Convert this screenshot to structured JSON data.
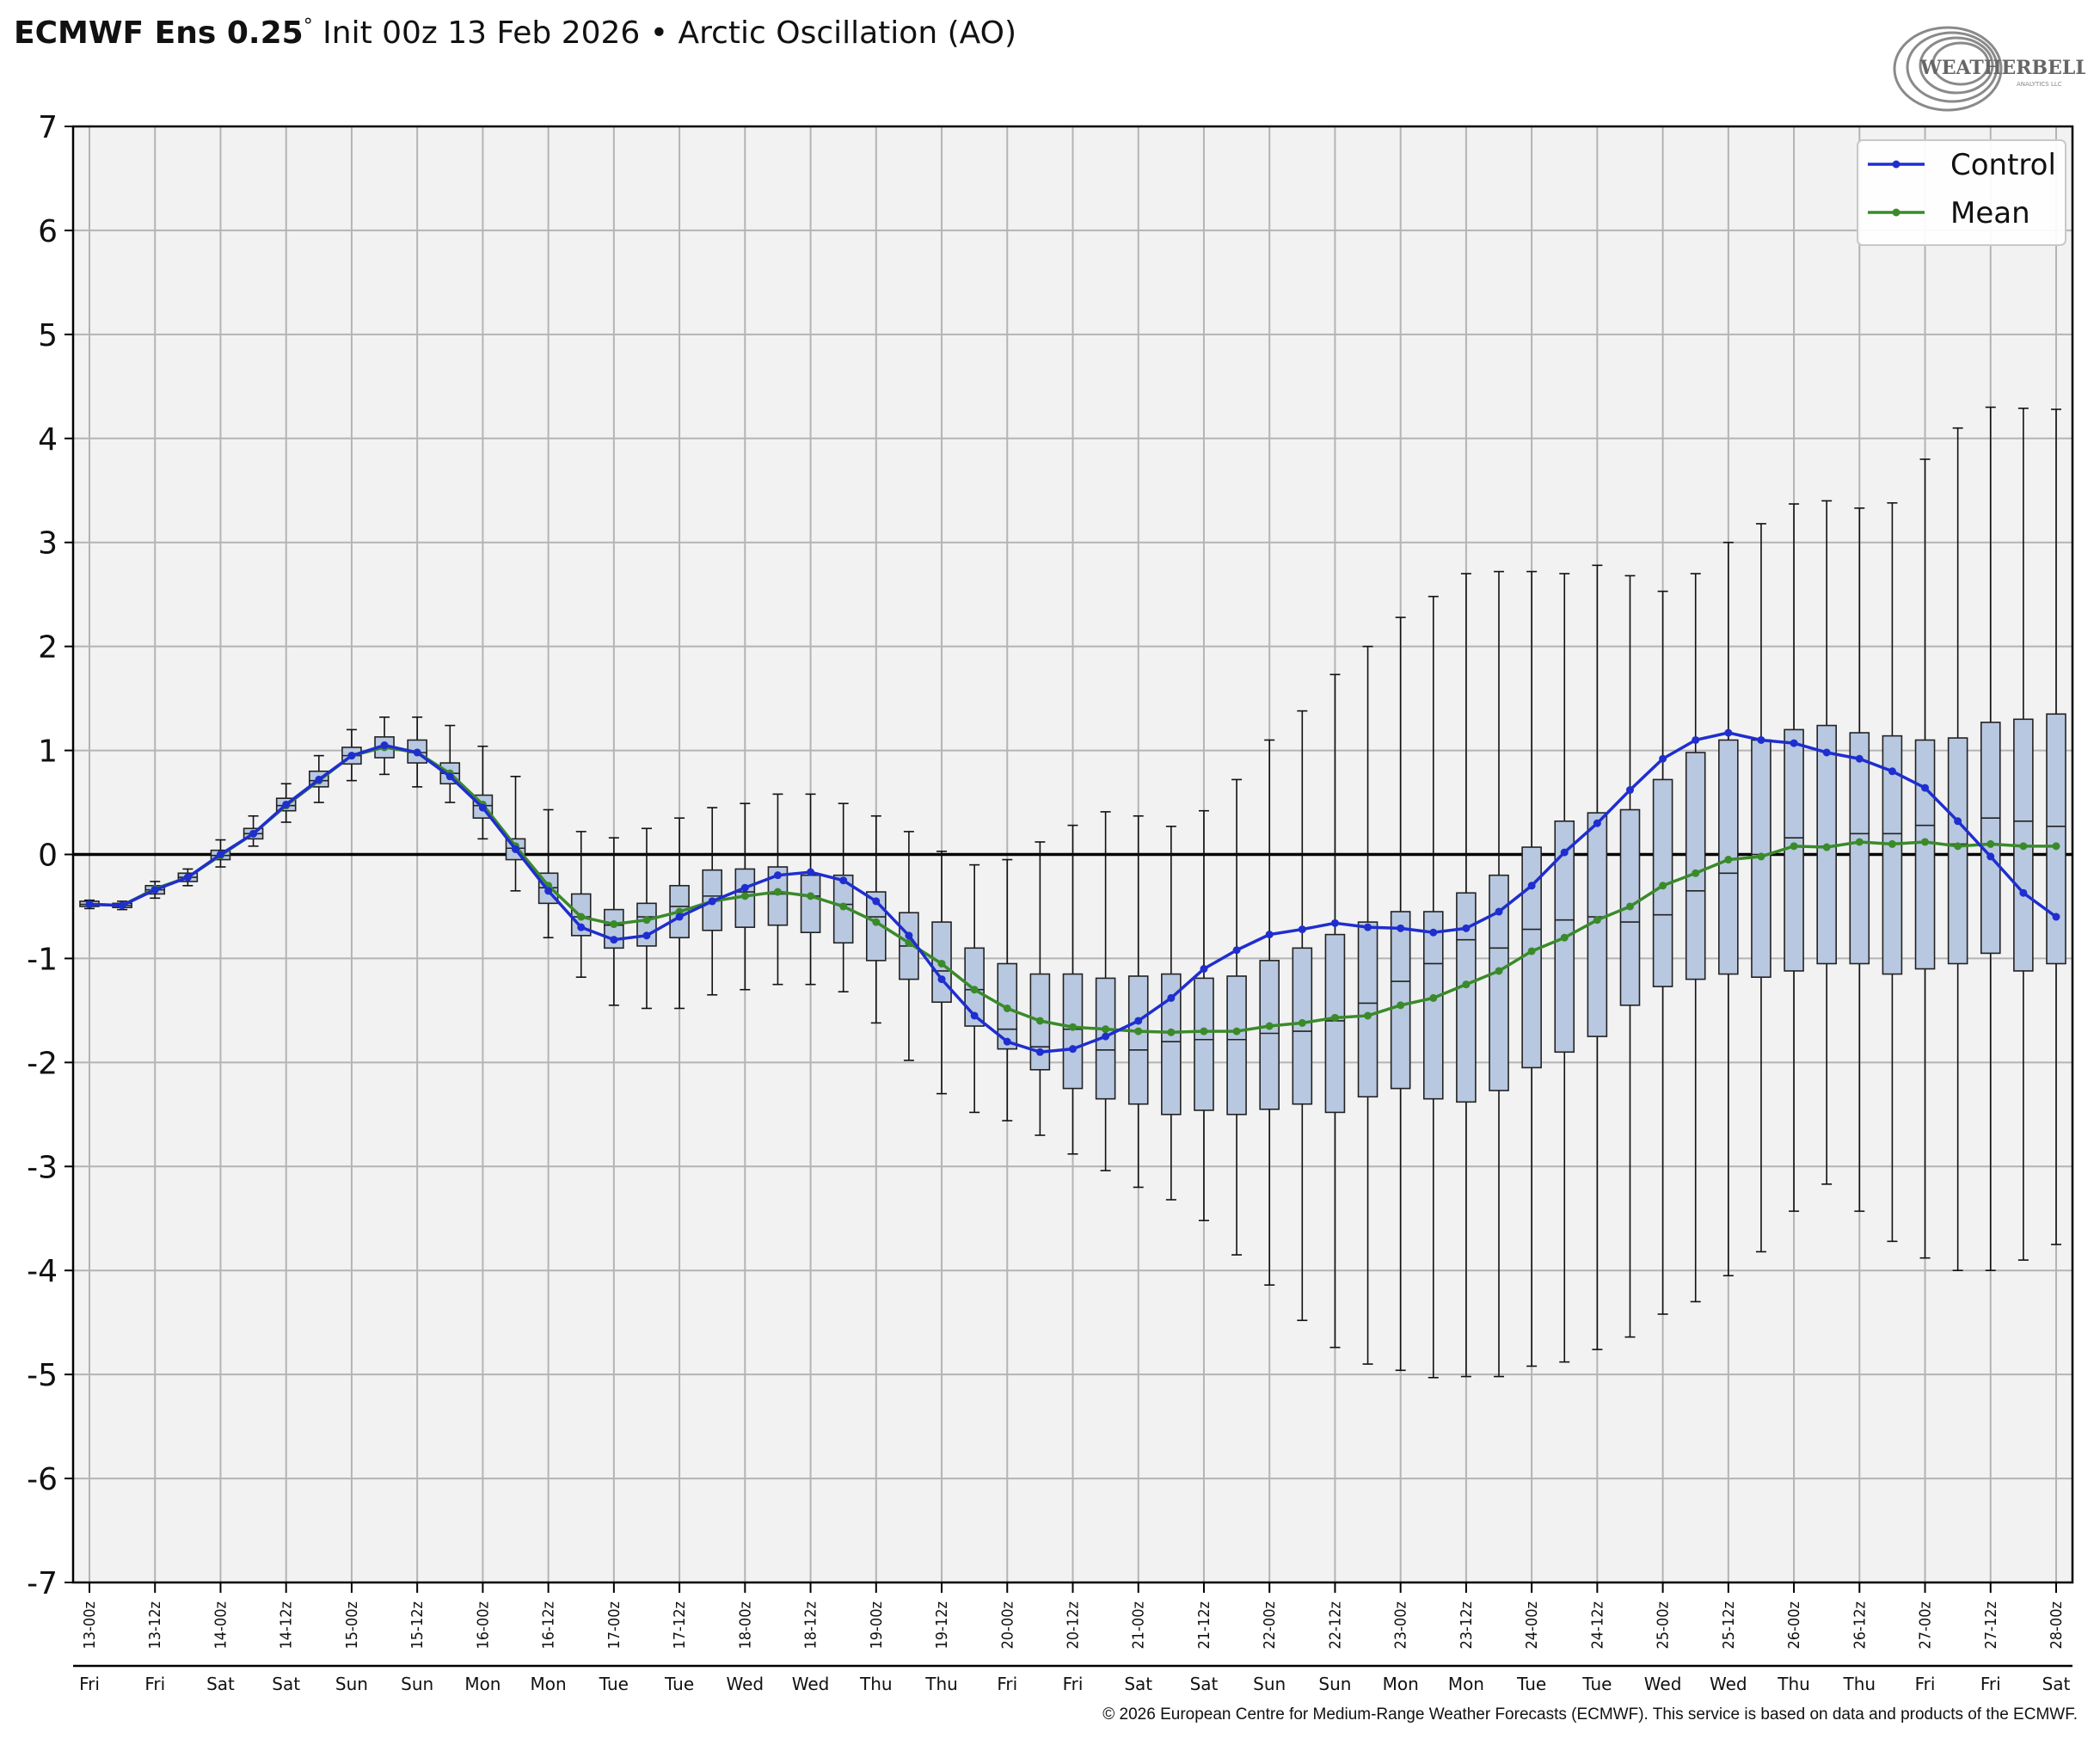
{
  "header": {
    "title_bold": "ECMWF Ens 0.25",
    "title_degree": "°",
    "title_rest": " Init 00z 13 Feb 2026 • Arctic Oscillation (AO)",
    "logo_text": "WEATHERBELL",
    "logo_subtext": "ANALYTICS LLC"
  },
  "footer": {
    "copyright": "© 2026 European Centre for Medium-Range Weather Forecasts (ECMWF). This service is based on data and products of the ECMWF."
  },
  "colors": {
    "control": "#1f2ecf",
    "mean": "#3a8a2a",
    "box_fill": "#b8c8e0",
    "plot_bg": "#f2f2f2",
    "grid": "#b4b4b4",
    "zero_line": "#000000"
  },
  "chart_data": {
    "type": "box",
    "title": "Arctic Oscillation (AO)",
    "ylim": [
      -7,
      7
    ],
    "yticks": [
      7,
      6,
      5,
      4,
      3,
      2,
      1,
      0,
      -1,
      -2,
      -3,
      -4,
      -5,
      -6,
      -7
    ],
    "grid": true,
    "legend_position": "top-right",
    "x_labels": [
      "13-00z",
      "13-12z",
      "14-00z",
      "14-12z",
      "15-00z",
      "15-12z",
      "16-00z",
      "16-12z",
      "17-00z",
      "17-12z",
      "18-00z",
      "18-12z",
      "19-00z",
      "19-12z",
      "20-00z",
      "20-12z",
      "21-00z",
      "21-12z",
      "22-00z",
      "22-12z",
      "23-00z",
      "23-12z",
      "24-00z",
      "24-12z",
      "25-00z",
      "25-12z",
      "26-00z",
      "26-12z",
      "27-00z",
      "27-12z",
      "28-00z"
    ],
    "x_days": [
      "Fri",
      "Fri",
      "Sat",
      "Sat",
      "Sun",
      "Sun",
      "Mon",
      "Mon",
      "Tue",
      "Tue",
      "Wed",
      "Wed",
      "Thu",
      "Thu",
      "Fri",
      "Fri",
      "Sat",
      "Sat",
      "Sun",
      "Sun",
      "Mon",
      "Mon",
      "Tue",
      "Tue",
      "Wed",
      "Wed",
      "Thu",
      "Thu",
      "Fri",
      "Fri",
      "Sat"
    ],
    "x_hours": [
      0,
      6,
      12,
      18,
      24,
      30,
      36,
      42,
      48,
      54,
      60,
      66,
      72,
      78,
      84,
      90,
      96,
      102,
      108,
      114,
      120,
      126,
      132,
      138,
      144,
      150,
      156,
      162,
      168,
      174,
      180,
      186,
      192,
      198,
      204,
      210,
      216,
      222,
      228,
      234,
      240,
      246,
      252,
      258,
      264,
      270,
      276,
      282,
      288,
      294,
      300,
      306,
      312,
      318,
      324,
      330,
      336,
      342,
      348,
      354,
      360
    ],
    "series": [
      {
        "name": "Control",
        "values": [
          -0.48,
          -0.49,
          -0.34,
          -0.22,
          0.0,
          0.2,
          0.48,
          0.72,
          0.95,
          1.05,
          0.98,
          0.75,
          0.45,
          0.05,
          -0.35,
          -0.7,
          -0.82,
          -0.78,
          -0.6,
          -0.45,
          -0.32,
          -0.2,
          -0.17,
          -0.25,
          -0.45,
          -0.78,
          -1.2,
          -1.55,
          -1.8,
          -1.9,
          -1.87,
          -1.75,
          -1.6,
          -1.38,
          -1.1,
          -0.92,
          -0.77,
          -0.72,
          -0.66,
          -0.7,
          -0.71,
          -0.75,
          -0.71,
          -0.55,
          -0.3,
          0.02,
          0.3,
          0.62,
          0.92,
          1.1,
          1.17,
          1.1,
          1.07,
          0.98,
          0.92,
          0.8,
          0.64,
          0.32,
          -0.02,
          -0.37,
          -0.6
        ]
      },
      {
        "name": "Mean",
        "values": [
          -0.48,
          -0.49,
          -0.33,
          -0.22,
          -0.01,
          0.2,
          0.47,
          0.71,
          0.95,
          1.03,
          0.98,
          0.78,
          0.48,
          0.08,
          -0.3,
          -0.6,
          -0.67,
          -0.63,
          -0.55,
          -0.45,
          -0.4,
          -0.36,
          -0.4,
          -0.5,
          -0.65,
          -0.85,
          -1.05,
          -1.3,
          -1.48,
          -1.6,
          -1.66,
          -1.68,
          -1.7,
          -1.71,
          -1.7,
          -1.7,
          -1.65,
          -1.62,
          -1.57,
          -1.55,
          -1.45,
          -1.38,
          -1.25,
          -1.12,
          -0.93,
          -0.8,
          -0.63,
          -0.5,
          -0.3,
          -0.18,
          -0.05,
          -0.02,
          0.08,
          0.07,
          0.12,
          0.1,
          0.12,
          0.08,
          0.1,
          0.08,
          0.08
        ]
      }
    ],
    "boxes": [
      {
        "min": -0.52,
        "q1": -0.5,
        "median": -0.48,
        "q3": -0.45,
        "max": -0.44
      },
      {
        "min": -0.53,
        "q1": -0.51,
        "median": -0.49,
        "q3": -0.47,
        "max": -0.45
      },
      {
        "min": -0.42,
        "q1": -0.38,
        "median": -0.34,
        "q3": -0.3,
        "max": -0.26
      },
      {
        "min": -0.3,
        "q1": -0.26,
        "median": -0.22,
        "q3": -0.18,
        "max": -0.14
      },
      {
        "min": -0.12,
        "q1": -0.05,
        "median": -0.01,
        "q3": 0.04,
        "max": 0.14
      },
      {
        "min": 0.08,
        "q1": 0.15,
        "median": 0.2,
        "q3": 0.25,
        "max": 0.37
      },
      {
        "min": 0.31,
        "q1": 0.42,
        "median": 0.47,
        "q3": 0.54,
        "max": 0.68
      },
      {
        "min": 0.5,
        "q1": 0.65,
        "median": 0.71,
        "q3": 0.8,
        "max": 0.95
      },
      {
        "min": 0.71,
        "q1": 0.87,
        "median": 0.95,
        "q3": 1.03,
        "max": 1.2
      },
      {
        "min": 0.77,
        "q1": 0.93,
        "median": 1.03,
        "q3": 1.13,
        "max": 1.32
      },
      {
        "min": 0.65,
        "q1": 0.88,
        "median": 0.98,
        "q3": 1.1,
        "max": 1.32
      },
      {
        "min": 0.5,
        "q1": 0.68,
        "median": 0.78,
        "q3": 0.88,
        "max": 1.24
      },
      {
        "min": 0.15,
        "q1": 0.35,
        "median": 0.47,
        "q3": 0.57,
        "max": 1.04
      },
      {
        "min": -0.35,
        "q1": -0.05,
        "median": 0.06,
        "q3": 0.15,
        "max": 0.75
      },
      {
        "min": -0.8,
        "q1": -0.47,
        "median": -0.32,
        "q3": -0.18,
        "max": 0.43
      },
      {
        "min": -1.18,
        "q1": -0.78,
        "median": -0.6,
        "q3": -0.38,
        "max": 0.22
      },
      {
        "min": -1.45,
        "q1": -0.9,
        "median": -0.68,
        "q3": -0.53,
        "max": 0.16
      },
      {
        "min": -1.48,
        "q1": -0.88,
        "median": -0.6,
        "q3": -0.47,
        "max": 0.25
      },
      {
        "min": -1.48,
        "q1": -0.8,
        "median": -0.5,
        "q3": -0.3,
        "max": 0.35
      },
      {
        "min": -1.35,
        "q1": -0.73,
        "median": -0.4,
        "q3": -0.15,
        "max": 0.45
      },
      {
        "min": -1.3,
        "q1": -0.7,
        "median": -0.36,
        "q3": -0.14,
        "max": 0.49
      },
      {
        "min": -1.25,
        "q1": -0.68,
        "median": -0.38,
        "q3": -0.12,
        "max": 0.58
      },
      {
        "min": -1.25,
        "q1": -0.75,
        "median": -0.4,
        "q3": -0.2,
        "max": 0.58
      },
      {
        "min": -1.32,
        "q1": -0.85,
        "median": -0.48,
        "q3": -0.2,
        "max": 0.49
      },
      {
        "min": -1.62,
        "q1": -1.02,
        "median": -0.6,
        "q3": -0.36,
        "max": 0.37
      },
      {
        "min": -1.98,
        "q1": -1.2,
        "median": -0.88,
        "q3": -0.56,
        "max": 0.22
      },
      {
        "min": -2.3,
        "q1": -1.42,
        "median": -1.12,
        "q3": -0.65,
        "max": 0.03
      },
      {
        "min": -2.48,
        "q1": -1.65,
        "median": -1.3,
        "q3": -0.9,
        "max": -0.1
      },
      {
        "min": -2.56,
        "q1": -1.87,
        "median": -1.68,
        "q3": -1.05,
        "max": -0.05
      },
      {
        "min": -2.7,
        "q1": -2.07,
        "median": -1.85,
        "q3": -1.15,
        "max": 0.12
      },
      {
        "min": -2.88,
        "q1": -2.25,
        "median": -1.68,
        "q3": -1.15,
        "max": 0.28
      },
      {
        "min": -3.04,
        "q1": -2.35,
        "median": -1.88,
        "q3": -1.19,
        "max": 0.41
      },
      {
        "min": -3.2,
        "q1": -2.4,
        "median": -1.88,
        "q3": -1.17,
        "max": 0.37
      },
      {
        "min": -3.32,
        "q1": -2.5,
        "median": -1.8,
        "q3": -1.15,
        "max": 0.27
      },
      {
        "min": -3.52,
        "q1": -2.46,
        "median": -1.78,
        "q3": -1.19,
        "max": 0.42
      },
      {
        "min": -3.85,
        "q1": -2.5,
        "median": -1.78,
        "q3": -1.17,
        "max": 0.72
      },
      {
        "min": -4.14,
        "q1": -2.45,
        "median": -1.72,
        "q3": -1.02,
        "max": 1.1
      },
      {
        "min": -4.48,
        "q1": -2.4,
        "median": -1.7,
        "q3": -0.9,
        "max": 1.38
      },
      {
        "min": -4.74,
        "q1": -2.48,
        "median": -1.6,
        "q3": -0.77,
        "max": 1.73
      },
      {
        "min": -4.9,
        "q1": -2.33,
        "median": -1.43,
        "q3": -0.65,
        "max": 2.0
      },
      {
        "min": -4.96,
        "q1": -2.25,
        "median": -1.22,
        "q3": -0.55,
        "max": 2.28
      },
      {
        "min": -5.03,
        "q1": -2.35,
        "median": -1.05,
        "q3": -0.55,
        "max": 2.48
      },
      {
        "min": -5.02,
        "q1": -2.38,
        "median": -0.82,
        "q3": -0.37,
        "max": 2.7
      },
      {
        "min": -5.02,
        "q1": -2.27,
        "median": -0.9,
        "q3": -0.2,
        "max": 2.72
      },
      {
        "min": -4.92,
        "q1": -2.05,
        "median": -0.72,
        "q3": 0.07,
        "max": 2.72
      },
      {
        "min": -4.88,
        "q1": -1.9,
        "median": -0.63,
        "q3": 0.32,
        "max": 2.7
      },
      {
        "min": -4.76,
        "q1": -1.75,
        "median": -0.6,
        "q3": 0.4,
        "max": 2.78
      },
      {
        "min": -4.64,
        "q1": -1.45,
        "median": -0.65,
        "q3": 0.43,
        "max": 2.68
      },
      {
        "min": -4.42,
        "q1": -1.27,
        "median": -0.58,
        "q3": 0.72,
        "max": 2.53
      },
      {
        "min": -4.3,
        "q1": -1.2,
        "median": -0.35,
        "q3": 0.98,
        "max": 2.7
      },
      {
        "min": -4.05,
        "q1": -1.15,
        "median": -0.18,
        "q3": 1.1,
        "max": 3.0
      },
      {
        "min": -3.82,
        "q1": -1.18,
        "median": 0.0,
        "q3": 1.1,
        "max": 3.18
      },
      {
        "min": -3.43,
        "q1": -1.12,
        "median": 0.16,
        "q3": 1.2,
        "max": 3.37
      },
      {
        "min": -3.17,
        "q1": -1.05,
        "median": 0.08,
        "q3": 1.24,
        "max": 3.4
      },
      {
        "min": -3.43,
        "q1": -1.05,
        "median": 0.2,
        "q3": 1.17,
        "max": 3.33
      },
      {
        "min": -3.72,
        "q1": -1.15,
        "median": 0.2,
        "q3": 1.14,
        "max": 3.38
      },
      {
        "min": -3.88,
        "q1": -1.1,
        "median": 0.28,
        "q3": 1.1,
        "max": 3.8
      },
      {
        "min": -4.0,
        "q1": -1.05,
        "median": 0.1,
        "q3": 1.12,
        "max": 4.1
      },
      {
        "min": -4.0,
        "q1": -0.95,
        "median": 0.35,
        "q3": 1.27,
        "max": 4.3
      },
      {
        "min": -3.9,
        "q1": -1.12,
        "median": 0.32,
        "q3": 1.3,
        "max": 4.29
      },
      {
        "min": -3.75,
        "q1": -1.05,
        "median": 0.27,
        "q3": 1.35,
        "max": 4.28
      }
    ]
  }
}
